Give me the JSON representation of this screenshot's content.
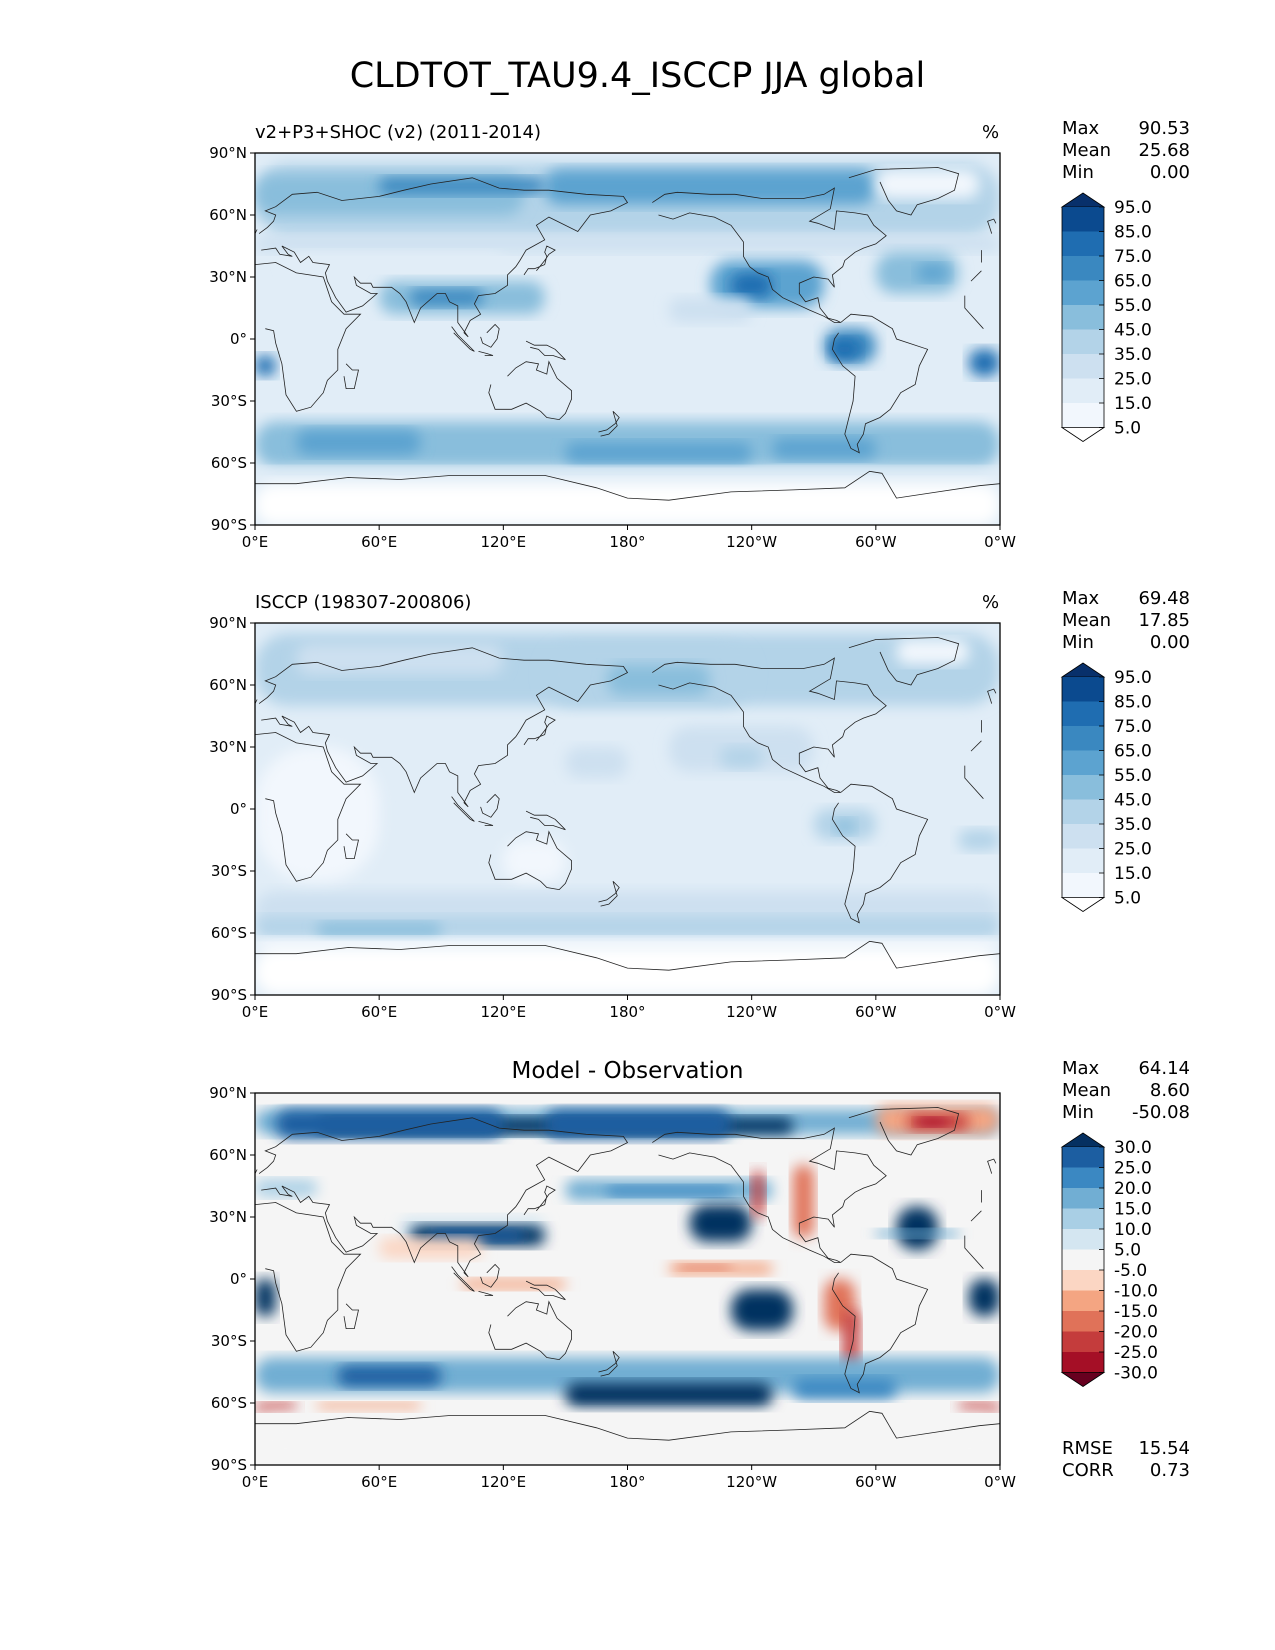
{
  "figure": {
    "title": "CLDTOT_TAU9.4_ISCCP JJA global"
  },
  "chart_data": [
    {
      "type": "heatmap",
      "title": "v2+P3+SHOC (v2) (2011-2014)",
      "units": "%",
      "stats": {
        "max_label": "Max",
        "max": "90.53",
        "mean_label": "Mean",
        "mean": "25.68",
        "min_label": "Min",
        "min": "0.00"
      },
      "colormap": "Blues",
      "levels": [
        "95.0",
        "85.0",
        "75.0",
        "65.0",
        "55.0",
        "45.0",
        "35.0",
        "25.0",
        "15.0",
        "5.0"
      ],
      "colors": [
        "#08306b",
        "#0b4a8f",
        "#1f6db1",
        "#3a88c0",
        "#5ca3d0",
        "#89bedc",
        "#b3d3e8",
        "#cde0f0",
        "#e1edf7",
        "#f2f7fd",
        "#ffffff"
      ],
      "xticks": [
        "0°E",
        "60°E",
        "120°E",
        "180°",
        "120°W",
        "60°W",
        "0°W"
      ],
      "yticks": [
        "90°N",
        "60°N",
        "30°N",
        "0°",
        "30°S",
        "60°S",
        "90°S"
      ]
    },
    {
      "type": "heatmap",
      "title": "ISCCP (198307-200806)",
      "units": "%",
      "stats": {
        "max_label": "Max",
        "max": "69.48",
        "mean_label": "Mean",
        "mean": "17.85",
        "min_label": "Min",
        "min": "0.00"
      },
      "colormap": "Blues",
      "levels": [
        "95.0",
        "85.0",
        "75.0",
        "65.0",
        "55.0",
        "45.0",
        "35.0",
        "25.0",
        "15.0",
        "5.0"
      ],
      "colors": [
        "#08306b",
        "#0b4a8f",
        "#1f6db1",
        "#3a88c0",
        "#5ca3d0",
        "#89bedc",
        "#b3d3e8",
        "#cde0f0",
        "#e1edf7",
        "#f2f7fd",
        "#ffffff"
      ],
      "xticks": [
        "0°E",
        "60°E",
        "120°E",
        "180°",
        "120°W",
        "60°W",
        "0°W"
      ],
      "yticks": [
        "90°N",
        "60°N",
        "30°N",
        "0°",
        "30°S",
        "60°S",
        "90°S"
      ]
    },
    {
      "type": "heatmap",
      "title": "Model - Observation",
      "units": "",
      "stats": {
        "max_label": "Max",
        "max": "64.14",
        "mean_label": "Mean",
        "mean": "8.60",
        "min_label": "Min",
        "min": "-50.08"
      },
      "extra_stats": {
        "rmse_label": "RMSE",
        "rmse": "15.54",
        "corr_label": "CORR",
        "corr": "0.73"
      },
      "colormap": "RdBu",
      "levels": [
        "30.0",
        "25.0",
        "20.0",
        "15.0",
        "10.0",
        "5.0",
        "-5.0",
        "-10.0",
        "-15.0",
        "-20.0",
        "-25.0",
        "-30.0"
      ],
      "colors": [
        "#053061",
        "#1c5ea1",
        "#3b88c2",
        "#71aed3",
        "#a9cfe5",
        "#d4e6f1",
        "#f5f5f5",
        "#fbd6c3",
        "#f4a582",
        "#e07259",
        "#c43c3c",
        "#a50f26",
        "#67001f"
      ],
      "xticks": [
        "0°E",
        "60°E",
        "120°E",
        "180°",
        "120°W",
        "60°W",
        "0°W"
      ],
      "yticks": [
        "90°N",
        "60°N",
        "30°N",
        "0°",
        "30°S",
        "60°S",
        "90°S"
      ]
    }
  ]
}
